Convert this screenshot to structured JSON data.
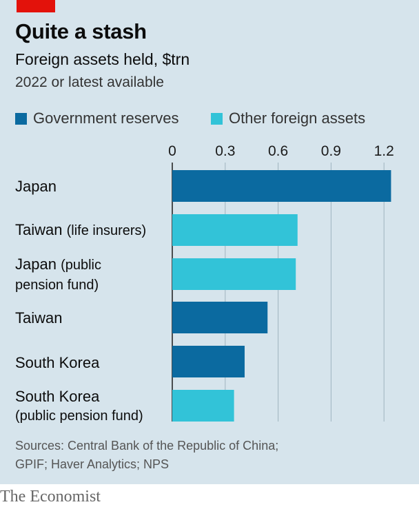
{
  "title": "Quite a stash",
  "subtitle": "Foreign assets held, $trn",
  "note": "2022 or latest available",
  "legend": [
    {
      "label": "Government reserves",
      "color": "#0b6aa0"
    },
    {
      "label": "Other foreign assets",
      "color": "#32c3d8"
    }
  ],
  "labels": [
    {
      "main": "Japan",
      "sub": ""
    },
    {
      "main": "Taiwan",
      "sub": "(life insurers)"
    },
    {
      "main": "Japan",
      "sub": "(public pension fund)",
      "sub_line1": "(public",
      "sub_line2": "pension fund)"
    },
    {
      "main": "Taiwan",
      "sub": ""
    },
    {
      "main": "South Korea",
      "sub": ""
    },
    {
      "main": "South Korea",
      "sub": "(public pension fund)"
    }
  ],
  "sources": {
    "line1": "Sources: Central Bank of the Republic of China;",
    "line2": "GPIF; Haver Analytics; NPS"
  },
  "brand": "The Economist",
  "chart_data": {
    "type": "bar",
    "orientation": "horizontal",
    "categories": [
      "Japan",
      "Taiwan (life insurers)",
      "Japan (public pension fund)",
      "Taiwan",
      "South Korea",
      "South Korea (public pension fund)"
    ],
    "series": [
      {
        "name": "Government reserves",
        "color": "#0b6aa0",
        "values": [
          1.24,
          null,
          null,
          0.54,
          0.41,
          null
        ]
      },
      {
        "name": "Other foreign assets",
        "color": "#32c3d8",
        "values": [
          null,
          0.71,
          0.7,
          null,
          null,
          0.35
        ]
      }
    ],
    "xticks": [
      "0",
      "0.3",
      "0.6",
      "0.9",
      "1.2"
    ],
    "xtick_values": [
      0,
      0.3,
      0.6,
      0.9,
      1.2
    ],
    "xlim": [
      0,
      1.2
    ],
    "grid": true,
    "legend_position": "top",
    "title": "Quite a stash",
    "xlabel": "",
    "ylabel": ""
  }
}
